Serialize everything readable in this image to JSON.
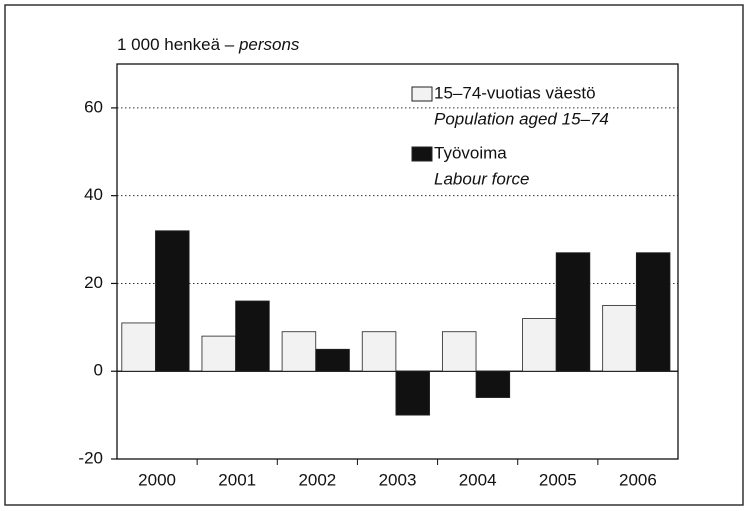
{
  "chart_data": {
    "type": "bar",
    "y_label": "1 000 henkeä –",
    "y_label_en": "persons",
    "categories": [
      "2000",
      "2001",
      "2002",
      "2003",
      "2004",
      "2005",
      "2006"
    ],
    "series": [
      {
        "name": "15–74-vuotias väestö",
        "name_en": "Population aged 15–74",
        "color": "#f2f2f2",
        "values": [
          11,
          8,
          9,
          9,
          9,
          12,
          15
        ]
      },
      {
        "name": "Työvoima",
        "name_en": "Labour force",
        "color": "#111111",
        "values": [
          32,
          16,
          5,
          -10,
          -6,
          27,
          27
        ]
      }
    ],
    "ylim": [
      -20,
      70
    ],
    "yticks": [
      -20,
      0,
      20,
      40,
      60
    ],
    "grid": true,
    "legend": "top-right"
  }
}
